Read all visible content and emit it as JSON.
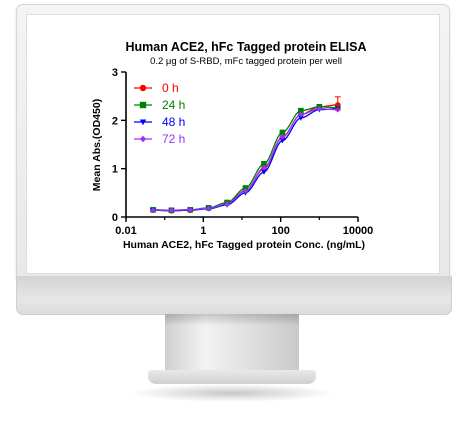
{
  "chart_data": {
    "type": "line",
    "title": "Human ACE2, hFc Tagged protein ELISA",
    "subtitle": "0.2 μg of S-RBD, mFc tagged protein per well",
    "xlabel": "Human ACE2, hFc Tagged protein Conc. (ng/mL)",
    "ylabel": "Mean Abs.(OD450)",
    "xscale": "log",
    "xlim": [
      0.01,
      10000
    ],
    "ylim": [
      0,
      3
    ],
    "x_ticks": [
      "0.01",
      "1",
      "100",
      "10000"
    ],
    "y_ticks": [
      "0",
      "1",
      "2",
      "3"
    ],
    "legend_position": "top-left",
    "grid": false,
    "x": [
      0.05,
      0.15,
      0.46,
      1.37,
      4.1,
      12.3,
      37,
      111,
      333,
      1000,
      3000
    ],
    "series": [
      {
        "name": "0 h",
        "color": "#ff0000",
        "marker": "circle",
        "values": [
          0.14,
          0.13,
          0.14,
          0.18,
          0.28,
          0.55,
          1.0,
          1.65,
          2.12,
          2.28,
          2.32
        ]
      },
      {
        "name": "24 h",
        "color": "#008000",
        "marker": "square",
        "values": [
          0.15,
          0.14,
          0.15,
          0.19,
          0.3,
          0.6,
          1.1,
          1.75,
          2.2,
          2.28,
          2.26
        ]
      },
      {
        "name": "48 h",
        "color": "#0000ff",
        "marker": "triangle-down",
        "values": [
          0.14,
          0.13,
          0.14,
          0.17,
          0.25,
          0.5,
          0.93,
          1.58,
          2.05,
          2.22,
          2.24
        ]
      },
      {
        "name": "72 h",
        "color": "#9933ff",
        "marker": "diamond",
        "values": [
          0.14,
          0.14,
          0.15,
          0.18,
          0.27,
          0.54,
          1.02,
          1.66,
          2.12,
          2.24,
          2.22
        ]
      }
    ]
  }
}
